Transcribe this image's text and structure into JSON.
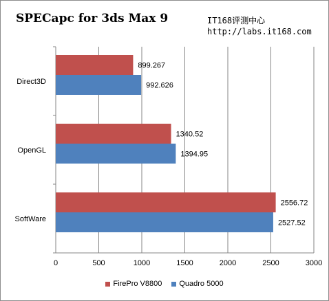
{
  "header": {
    "title": "SPECapc for 3ds Max 9",
    "source_name": "IT168评测中心",
    "source_url": "http://labs.it168.com"
  },
  "chart_data": {
    "type": "bar",
    "orientation": "horizontal",
    "title": "SPECapc for 3ds Max 9",
    "categories": [
      "Direct3D",
      "OpenGL",
      "SoftWare"
    ],
    "series": [
      {
        "name": "FirePro V8800",
        "color": "#c0504d",
        "values": [
          899.267,
          1340.52,
          2556.72
        ]
      },
      {
        "name": "Quadro 5000",
        "color": "#4f81bd",
        "values": [
          992.626,
          1394.95,
          2527.52
        ]
      }
    ],
    "value_labels": [
      [
        "899.267",
        "1340.52",
        "2556.72"
      ],
      [
        "992.626",
        "1394.95",
        "2527.52"
      ]
    ],
    "xlim": [
      0,
      3000
    ],
    "xticks": [
      "0",
      "500",
      "1000",
      "1500",
      "2000",
      "2500",
      "3000"
    ],
    "grid": true,
    "legend_position": "bottom"
  }
}
